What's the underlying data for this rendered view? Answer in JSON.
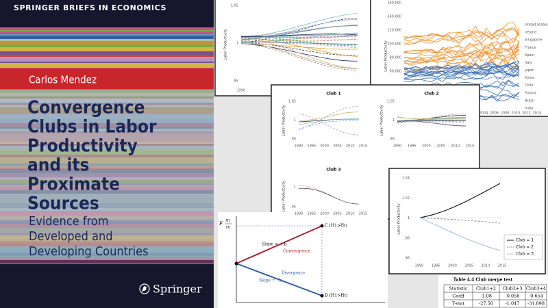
{
  "cover": {
    "series": "SPRINGER BRIEFS IN ECONOMICS",
    "author": "Carlos Mendez",
    "title_lines": [
      "Convergence",
      "Clubs in Labor",
      "Productivity",
      "and its",
      "Proximate",
      "Sources"
    ],
    "subtitle_lines": [
      "Evidence from",
      "Developed and",
      "Developing Countries"
    ],
    "publisher": "Springer"
  },
  "panel_top_left": {
    "ylabel": "Labor Productivity",
    "yticks": [
      "1.05",
      "1",
      ".95"
    ],
    "xticks": [
      "1990"
    ]
  },
  "panel_top_right": {
    "ylabel": "Labor Productivity",
    "yticks": [
      "160,000",
      "140,000",
      "120,000",
      "100,000",
      "80,000",
      "60,000"
    ],
    "xticks": [
      "2004",
      "2006",
      "2008",
      "2010",
      "2012",
      "2014"
    ],
    "countries": [
      "United States",
      "Ireland",
      "Singapore",
      "France",
      "Spain",
      "Italy",
      "Japan",
      "Korea",
      "Chile",
      "Poland",
      "Brazil",
      "India"
    ]
  },
  "panel_clubs": {
    "ylabel": "Labor Productivity",
    "subplots": [
      {
        "title": "Club 1",
        "yticks": [
          "1.05",
          "1",
          ".95"
        ],
        "xticks": [
          "1990",
          "1995",
          "2000",
          "2005",
          "2010",
          "2015"
        ]
      },
      {
        "title": "Club 2",
        "yticks": [
          "1.05",
          "1",
          ".95"
        ],
        "xticks": [
          "1990",
          "1995",
          "2000",
          "2005",
          "2010",
          "2015"
        ]
      },
      {
        "title": "Club 3",
        "yticks": [
          "1",
          ".95"
        ],
        "xticks": [
          "1990",
          "1995",
          "2000",
          "2005",
          "2010",
          "2015"
        ]
      }
    ]
  },
  "panel_average": {
    "ylabel": "Labor Productivity",
    "yticks": [
      "1.04",
      "1.02",
      "1",
      ".98",
      ".96"
    ],
    "xticks": [
      "1990",
      "1995",
      "2000",
      "2005",
      "2010",
      "2015"
    ],
    "legend": [
      "Club = 1",
      "Club = 2",
      "Club = 3"
    ]
  },
  "diagram": {
    "f_label": "F",
    "numerator": "H1",
    "denominator": "Ht",
    "slope_up": "Slope = + b",
    "convergence": "Convergence",
    "slope_down": "Slope = - b",
    "divergence": "Divergence",
    "point_c": "C (H1>Ht)",
    "point_d": "D (H1>Ht)"
  },
  "table": {
    "caption": "Table 4.4 Club merge test",
    "header": [
      "Statistic",
      "Club1+2",
      "Club2+3",
      "Club3+4"
    ],
    "rows": [
      [
        "Coeff",
        "-1.08",
        "-0.058",
        "-0.654"
      ],
      [
        "T-stat",
        "-27.50",
        "-1.047",
        "-31.898"
      ]
    ]
  }
}
